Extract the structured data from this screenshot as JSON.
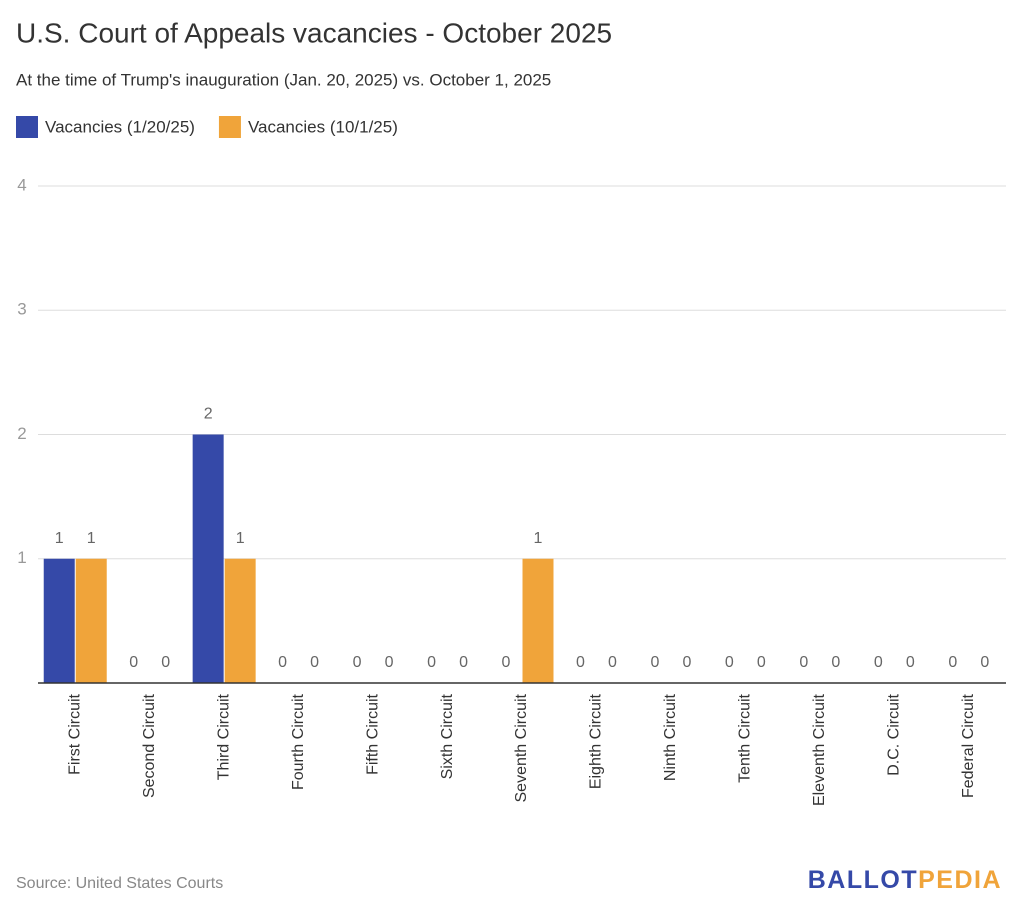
{
  "chart_data": {
    "type": "bar",
    "title": "U.S. Court of Appeals vacancies - October 2025",
    "subtitle": "At the time of Trump's inauguration (Jan. 20, 2025) vs. October 1, 2025",
    "categories": [
      "First Circuit",
      "Second Circuit",
      "Third Circuit",
      "Fourth Circuit",
      "Fifth Circuit",
      "Sixth Circuit",
      "Seventh Circuit",
      "Eighth Circuit",
      "Ninth Circuit",
      "Tenth Circuit",
      "Eleventh Circuit",
      "D.C. Circuit",
      "Federal Circuit"
    ],
    "series": [
      {
        "name": "Vacancies (1/20/25)",
        "color": "#3549a8",
        "values": [
          1,
          0,
          2,
          0,
          0,
          0,
          0,
          0,
          0,
          0,
          0,
          0,
          0
        ]
      },
      {
        "name": "Vacancies (10/1/25)",
        "color": "#f0a43a",
        "values": [
          1,
          0,
          1,
          0,
          0,
          0,
          1,
          0,
          0,
          0,
          0,
          0,
          0
        ]
      }
    ],
    "ylim": [
      0,
      4
    ],
    "yticks": [
      1,
      2,
      3,
      4
    ],
    "grid": true,
    "source": "Source: United States Courts",
    "logo": [
      "BALLOT",
      "PEDIA"
    ]
  }
}
